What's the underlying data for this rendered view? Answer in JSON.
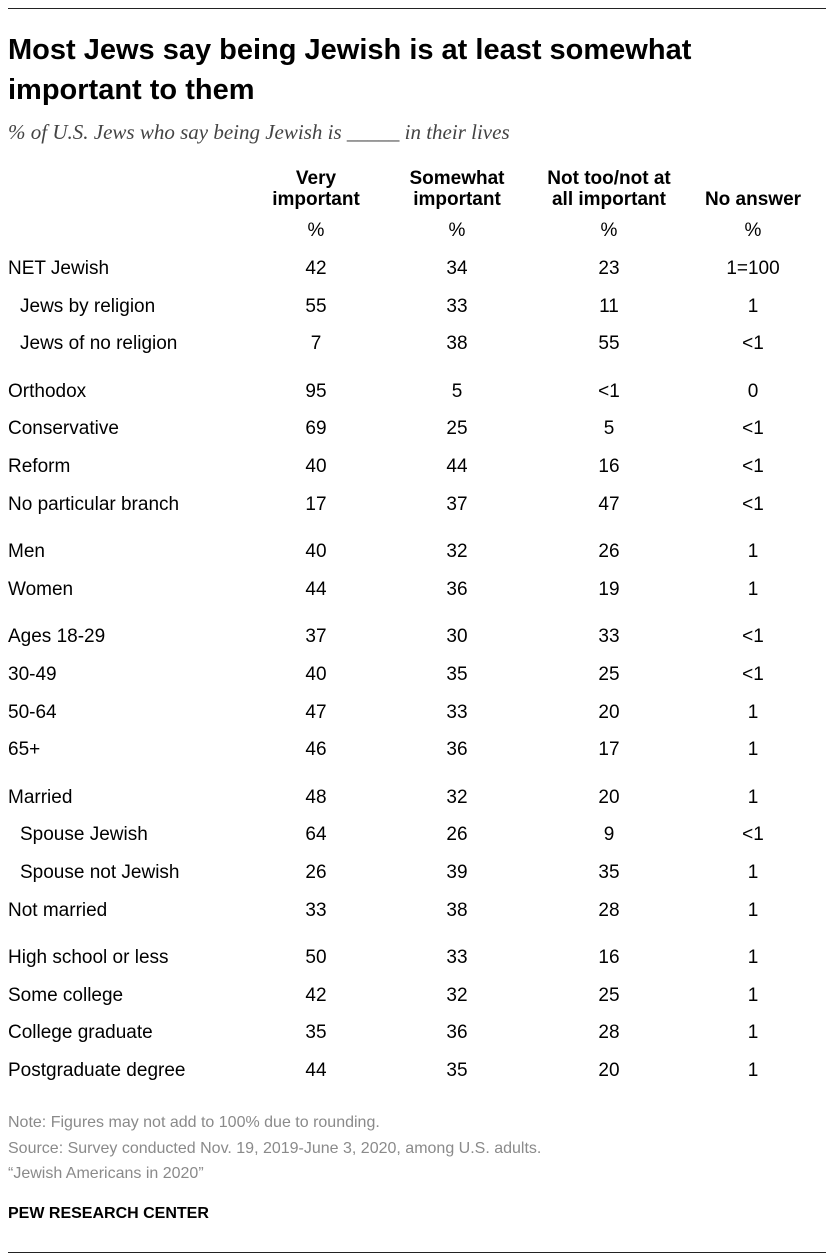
{
  "header": {
    "title": "Most Jews say being Jewish is at least somewhat important to them",
    "subtitle": "% of U.S. Jews who say being Jewish is _____ in their lives"
  },
  "table": {
    "columns": [
      [
        "Very",
        "important"
      ],
      [
        "Somewhat",
        "important"
      ],
      [
        "Not too/not at",
        "all important"
      ],
      [
        "No answer"
      ]
    ],
    "units": [
      "%",
      "%",
      "%",
      "%"
    ],
    "groups": [
      [
        [
          "NET Jewish",
          42,
          34,
          23,
          "1=100"
        ],
        [
          "Jews by religion",
          55,
          33,
          11,
          1
        ],
        [
          "Jews of no religion",
          7,
          38,
          55,
          "<1"
        ]
      ],
      [
        [
          "Orthodox",
          95,
          5,
          "<1",
          0
        ],
        [
          "Conservative",
          69,
          25,
          5,
          "<1"
        ],
        [
          "Reform",
          40,
          44,
          16,
          "<1"
        ],
        [
          "No particular branch",
          17,
          37,
          47,
          "<1"
        ]
      ],
      [
        [
          "Men",
          40,
          32,
          26,
          1
        ],
        [
          "Women",
          44,
          36,
          19,
          1
        ]
      ],
      [
        [
          "Ages 18-29",
          37,
          30,
          33,
          "<1"
        ],
        [
          "30-49",
          40,
          35,
          25,
          "<1"
        ],
        [
          "50-64",
          47,
          33,
          20,
          1
        ],
        [
          "65+",
          46,
          36,
          17,
          1
        ]
      ],
      [
        [
          "Married",
          48,
          32,
          20,
          1
        ],
        [
          "Spouse Jewish",
          64,
          26,
          9,
          "<1"
        ],
        [
          "Spouse not Jewish",
          26,
          39,
          35,
          1
        ],
        [
          "Not married",
          33,
          38,
          28,
          1
        ]
      ],
      [
        [
          "High school or less",
          50,
          33,
          16,
          1
        ],
        [
          "Some college",
          42,
          32,
          25,
          1
        ],
        [
          "College graduate",
          35,
          36,
          28,
          1
        ],
        [
          "Postgraduate degree",
          44,
          35,
          20,
          1
        ]
      ]
    ]
  },
  "footer": {
    "note": "Note: Figures may not add to 100% due to rounding.",
    "source": "Source: Survey conducted Nov. 19, 2019-June 3, 2020, among U.S. adults.",
    "report": "“Jewish Americans in 2020”",
    "brand": "PEW RESEARCH CENTER"
  }
}
